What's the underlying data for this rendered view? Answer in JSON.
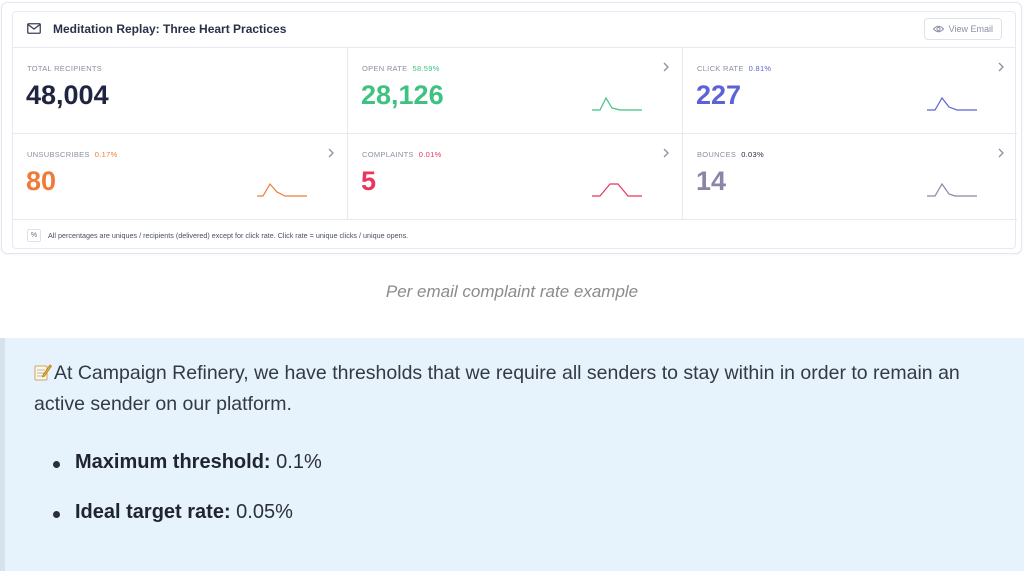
{
  "email_card": {
    "title": "Meditation Replay: Three Heart Practices",
    "view_email_label": "View Email",
    "icons": {
      "title_icon": "mail-icon",
      "view_icon": "eye-icon",
      "row_arrow": "chevron-right-icon",
      "note_icon": "percent-icon"
    },
    "stats": [
      {
        "label": "TOTAL RECIPIENTS",
        "pct": "",
        "value": "48,004",
        "color": "#1f2540",
        "pct_color": "#8a90a3",
        "has_chart": false
      },
      {
        "label": "OPEN RATE",
        "pct": "58.59%",
        "value": "28,126",
        "color": "#3ec282",
        "pct_color": "#3ec282",
        "has_chart": true
      },
      {
        "label": "CLICK RATE",
        "pct": "0.81%",
        "value": "227",
        "color": "#5b63d6",
        "pct_color": "#5b63d6",
        "has_chart": true
      },
      {
        "label": "UNSUBSCRIBES",
        "pct": "0.17%",
        "value": "80",
        "color": "#f07a36",
        "pct_color": "#f07a36",
        "has_chart": true
      },
      {
        "label": "COMPLAINTS",
        "pct": "0.01%",
        "value": "5",
        "color": "#e8365f",
        "pct_color": "#e8365f",
        "has_chart": true
      },
      {
        "label": "BOUNCES",
        "pct": "0.03%",
        "value": "14",
        "color": "#8a86a8",
        "pct_color": "#1f2540",
        "has_chart": true
      }
    ],
    "note_symbol": "%",
    "note": "All percentages are uniques / recipients (delivered) except for click rate. Click rate = unique clicks / unique opens."
  },
  "caption": "Per email complaint rate example",
  "callout": {
    "icon": "memo-icon",
    "text": "At Campaign Refinery, we have thresholds that we require all senders to stay within in order to remain an active sender on our platform.",
    "bullets": [
      {
        "label": "Maximum threshold:",
        "value": " 0.1%"
      },
      {
        "label": "Ideal target rate:",
        "value": " 0.05%"
      }
    ]
  }
}
